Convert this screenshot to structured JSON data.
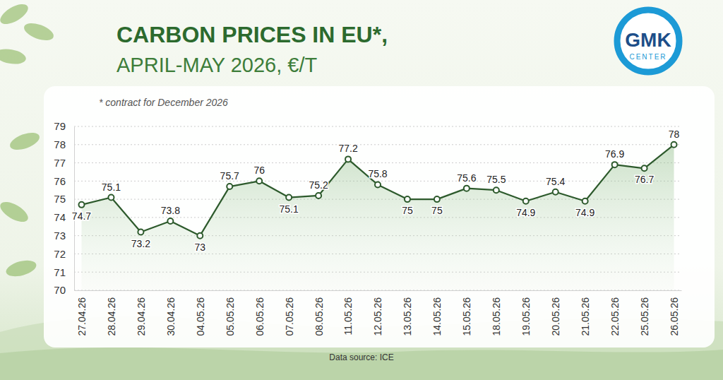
{
  "chart_data": {
    "type": "line",
    "title": "CARBON PRICES IN EU*,",
    "subtitle": "APRIL-MAY 2026, €/T",
    "note": "* contract for December 2026",
    "source": "Data source: ICE",
    "logo": "GMK",
    "logo_subtitle": "CENTER",
    "categories": [
      "27.04.26",
      "28.04.26",
      "29.04.26",
      "30.04.26",
      "04.05.26",
      "05.05.26",
      "06.05.26",
      "07.05.26",
      "08.05.26",
      "11.05.26",
      "12.05.26",
      "13.05.26",
      "14.05.26",
      "15.05.26",
      "18.05.26",
      "19.05.26",
      "20.05.26",
      "21.05.26",
      "22.05.26",
      "25.05.26",
      "26.05.26"
    ],
    "values": [
      74.7,
      75.1,
      73.2,
      73.8,
      73,
      75.7,
      76,
      75.1,
      75.2,
      77.2,
      75.8,
      75,
      75,
      75.6,
      75.5,
      74.9,
      75.4,
      74.9,
      76.9,
      76.7,
      78
    ],
    "color": "#2d5a2c",
    "ylim": [
      70,
      79
    ],
    "yticks": [
      70,
      71,
      72,
      73,
      74,
      75,
      76,
      77,
      78,
      79
    ],
    "grid": true,
    "data_labels": true,
    "marker": "circle"
  }
}
